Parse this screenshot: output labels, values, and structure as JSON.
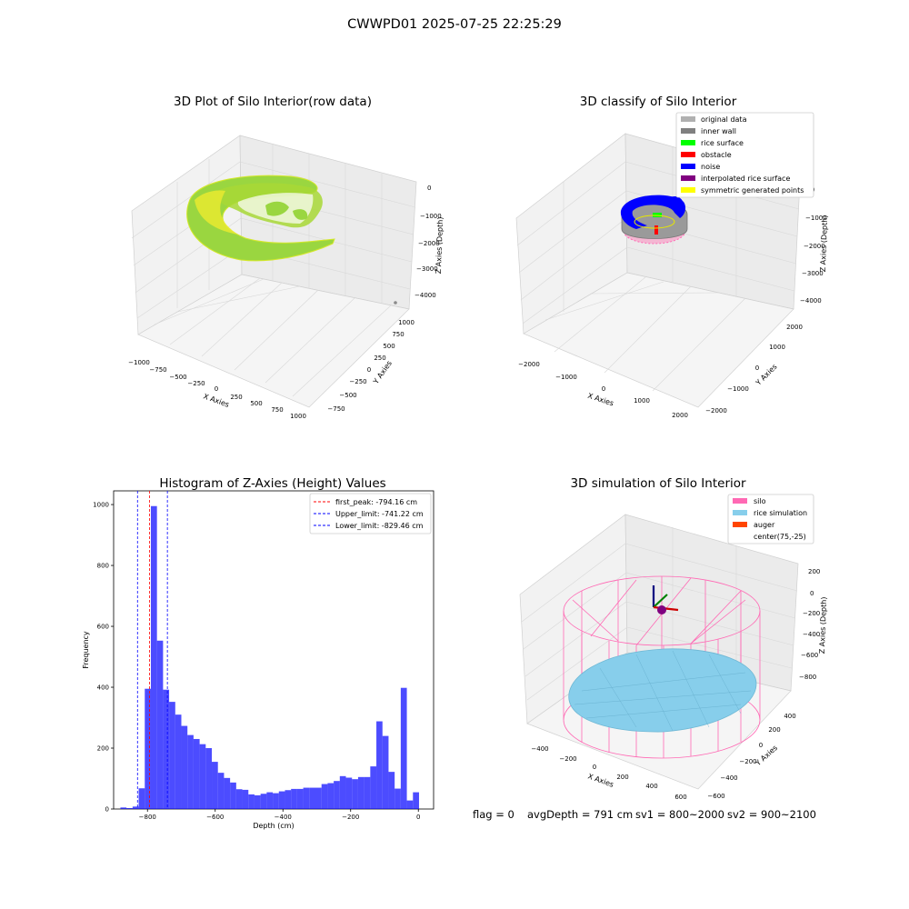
{
  "suptitle": "CWWPD01 2025-07-25 22:25:29",
  "panels": {
    "raw": {
      "title": "3D Plot of Silo Interior(row data)",
      "xlabel": "X Axies",
      "ylabel": "Y Axies",
      "zlabel": "Z Axies (Depth)",
      "xticks": [
        "−1000",
        "−750",
        "−500",
        "−250",
        "0",
        "250",
        "500",
        "750",
        "1000"
      ],
      "yticks": [
        "−750",
        "−500",
        "−250",
        "0",
        "250",
        "500",
        "750",
        "1000"
      ],
      "zticks": [
        "0",
        "−1000",
        "−2000",
        "−3000",
        "−4000"
      ]
    },
    "classify": {
      "title": "3D classify of Silo Interior",
      "xlabel": "X Axies",
      "ylabel": "Y Axies",
      "zlabel": "Z Axies (Depth)",
      "xticks": [
        "−2000",
        "−1000",
        "0",
        "1000",
        "2000"
      ],
      "yticks": [
        "−2000",
        "−1000",
        "0",
        "1000",
        "2000"
      ],
      "zticks": [
        "0",
        "−1000",
        "−2000",
        "−3000",
        "−4000"
      ],
      "legend": [
        {
          "label": "original data",
          "color": "#b0b0b0"
        },
        {
          "label": "inner wall",
          "color": "#808080"
        },
        {
          "label": "rice surface",
          "color": "#00ff00"
        },
        {
          "label": "obstacle",
          "color": "#ff0000"
        },
        {
          "label": "noise",
          "color": "#0000ff"
        },
        {
          "label": "interpolated rice surface",
          "color": "#800080"
        },
        {
          "label": "symmetric generated points",
          "color": "#ffff00"
        }
      ]
    },
    "simulation": {
      "title": "3D simulation of Silo Interior",
      "xlabel": "X Axies",
      "ylabel": "Y Axies",
      "zlabel": "Z Axies (Depth)",
      "xticks": [
        "−400",
        "−200",
        "0",
        "200",
        "400",
        "600"
      ],
      "yticks": [
        "−600",
        "−400",
        "−200",
        "0",
        "200",
        "400"
      ],
      "zticks": [
        "200",
        "0",
        "−200",
        "−400",
        "−600",
        "−800"
      ],
      "legend": [
        {
          "label": "silo",
          "color": "#ff69b4"
        },
        {
          "label": "rice simulation",
          "color": "#87ceeb"
        },
        {
          "label": "auger",
          "color": "#ff4500"
        },
        {
          "label": "center(75,-25)",
          "color": ""
        }
      ]
    }
  },
  "chart_data": {
    "type": "bar",
    "title": "Histogram of Z-Axies (Height) Values",
    "xlabel": "Depth (cm)",
    "ylabel": "Frequency",
    "xlim": [
      -900,
      45
    ],
    "ylim": [
      0,
      1045
    ],
    "xticks": [
      -800,
      -600,
      -400,
      -200,
      0
    ],
    "yticks": [
      0,
      200,
      400,
      600,
      800,
      1000
    ],
    "bar_color": "#0000ff",
    "bin_width": 18,
    "bins_start": [
      -880,
      -862,
      -844,
      -826,
      -808,
      -790,
      -772,
      -754,
      -736,
      -718,
      -700,
      -682,
      -664,
      -646,
      -628,
      -610,
      -592,
      -574,
      -556,
      -538,
      -520,
      -502,
      -484,
      -466,
      -448,
      -430,
      -412,
      -394,
      -376,
      -358,
      -340,
      -322,
      -304,
      -286,
      -268,
      -250,
      -232,
      -214,
      -196,
      -178,
      -160,
      -142,
      -124,
      -106,
      -88,
      -70,
      -52,
      -34,
      -16
    ],
    "values": [
      5,
      3,
      8,
      68,
      395,
      995,
      553,
      392,
      352,
      310,
      273,
      243,
      230,
      213,
      200,
      155,
      119,
      102,
      87,
      65,
      63,
      48,
      45,
      50,
      55,
      52,
      58,
      62,
      66,
      66,
      70,
      70,
      70,
      82,
      85,
      92,
      108,
      103,
      98,
      105,
      105,
      140,
      288,
      240,
      122,
      67,
      398,
      28,
      55
    ],
    "vlines": [
      {
        "label": "first_peak: -794.16 cm",
        "x": -794.16,
        "color": "#ff0000"
      },
      {
        "label": "Upper_limit: -741.22 cm",
        "x": -741.22,
        "color": "#0000ff"
      },
      {
        "label": "Lower_limit: -829.46 cm",
        "x": -829.46,
        "color": "#0000ff"
      }
    ],
    "legend_loc": "upper right"
  },
  "status": {
    "flag": "flag = 0",
    "avg_depth": "avgDepth = 791 cm",
    "sv1": "sv1 = 800~2000",
    "sv2": "sv2 = 900~2100"
  }
}
